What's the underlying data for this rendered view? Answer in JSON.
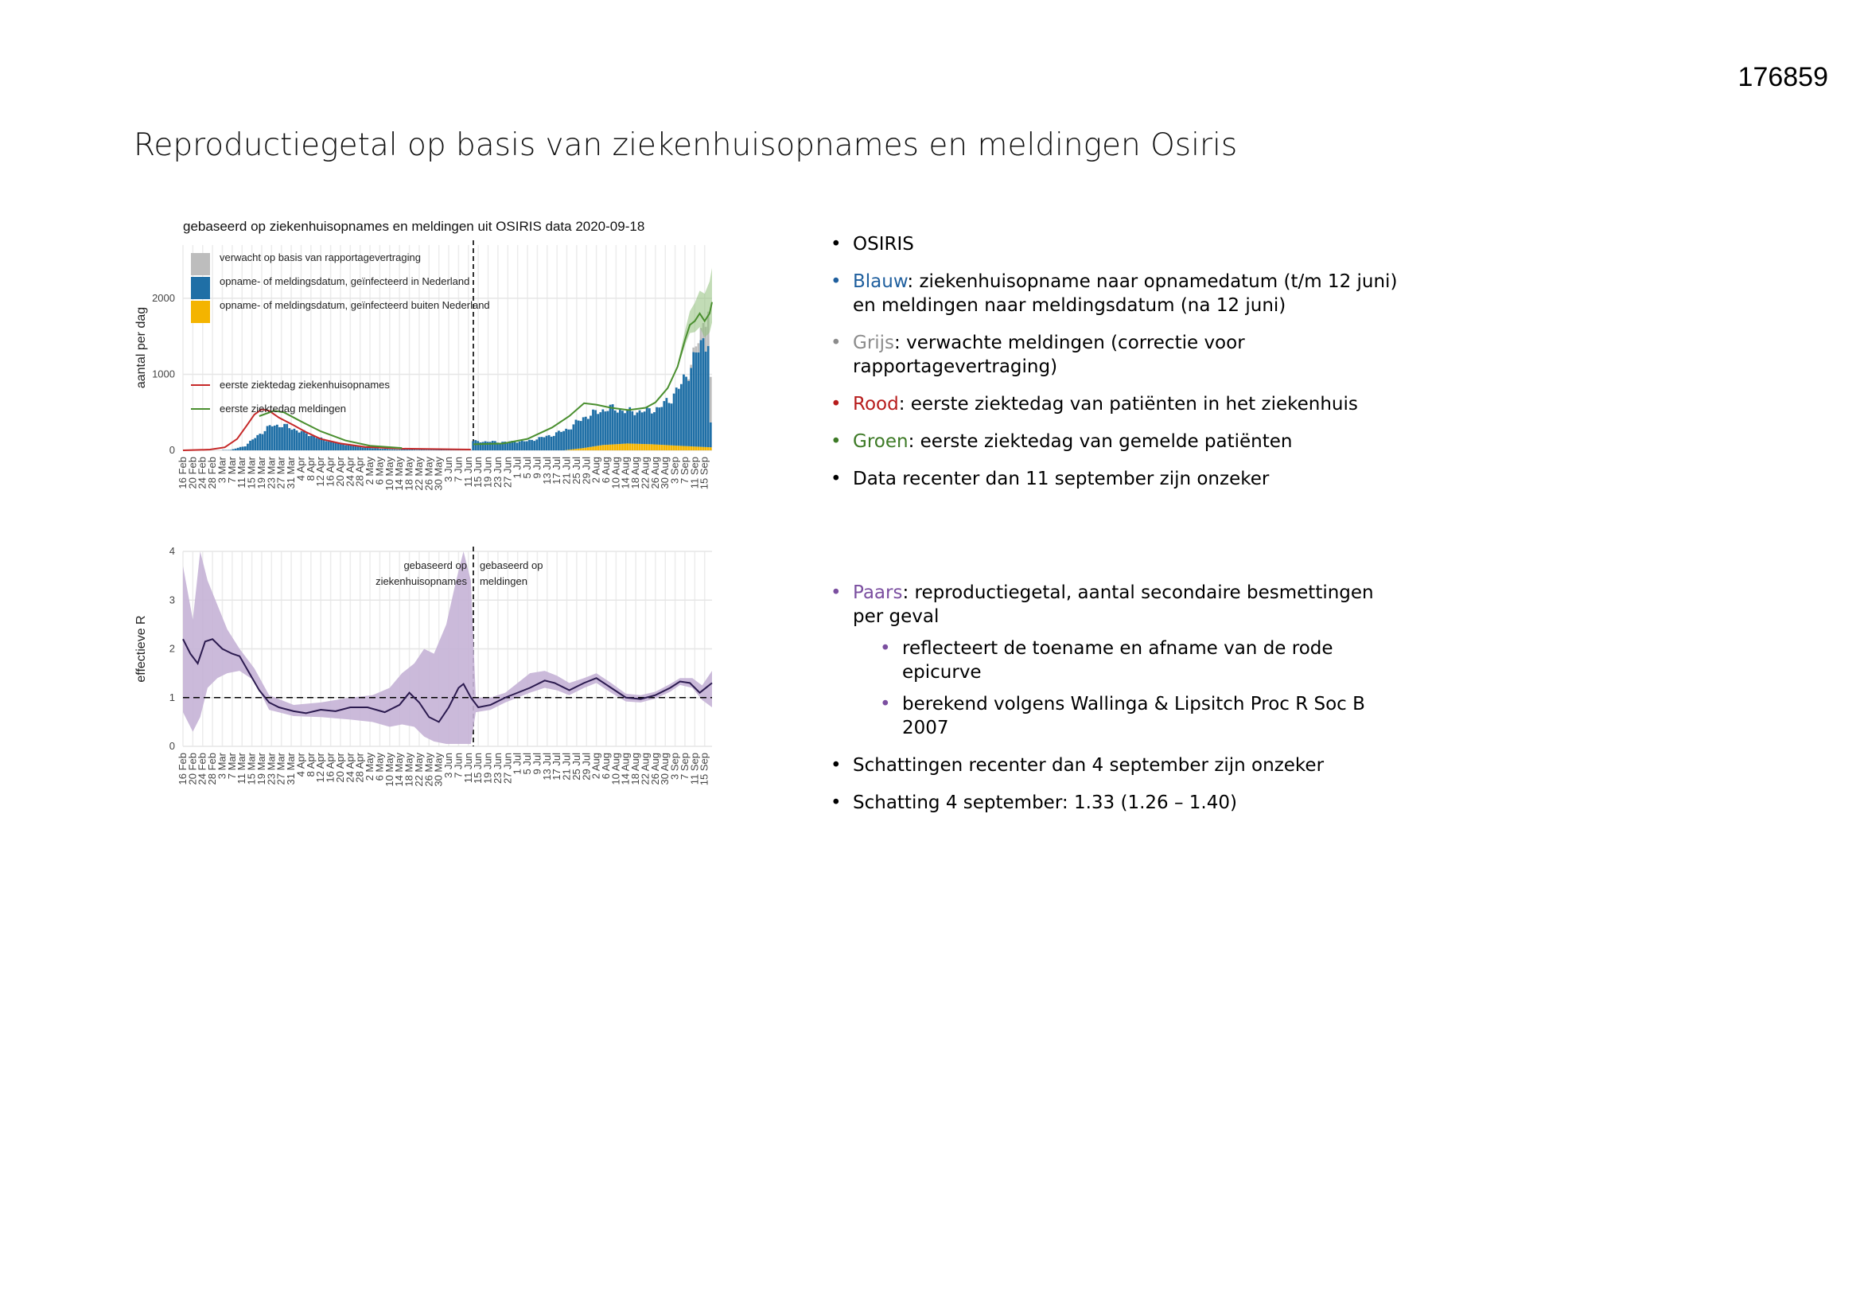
{
  "doc_id": "176859",
  "slide_title": "Reproductiegetal op basis van ziekenhuisopnames en meldingen Osiris",
  "colors": {
    "blue": "#1f6fa6",
    "grey": "#bdbdbd",
    "orange": "#f4b400",
    "red": "#c62828",
    "green": "#4a8f2f",
    "purple": "#6a4a9c",
    "purple_band": "#c5b3d6",
    "r_line": "#2b1a4f"
  },
  "bullets_top": [
    {
      "segments": [
        {
          "text": "OSIRIS",
          "color": "#000000"
        }
      ],
      "dot": "#000000"
    },
    {
      "segments": [
        {
          "text": "Blauw",
          "color": "#1f5f9e"
        },
        {
          "text": ": ziekenhuisopname naar opnamedatum (t/m 12 juni) en meldingen naar meldingsdatum (na 12 juni)",
          "color": "#000000"
        }
      ],
      "dot": "#1f5f9e"
    },
    {
      "segments": [
        {
          "text": "Grijs",
          "color": "#8c8c8c"
        },
        {
          "text": ": verwachte meldingen (correctie voor rapportagevertraging)",
          "color": "#000000"
        }
      ],
      "dot": "#8c8c8c"
    },
    {
      "segments": [
        {
          "text": "Rood",
          "color": "#b71c1c"
        },
        {
          "text": ": eerste ziektedag van patiënten in het ziekenhuis",
          "color": "#000000"
        }
      ],
      "dot": "#b71c1c"
    },
    {
      "segments": [
        {
          "text": "Groen",
          "color": "#3d7a26"
        },
        {
          "text": ": eerste ziektedag van gemelde patiënten",
          "color": "#000000"
        }
      ],
      "dot": "#3d7a26"
    },
    {
      "segments": [
        {
          "text": "Data recenter dan 11 september zijn onzeker",
          "color": "#000000"
        }
      ],
      "dot": "#000000"
    }
  ],
  "bullets_bottom": {
    "main": {
      "segments": [
        {
          "text": "Paars",
          "color": "#7b4fa0"
        },
        {
          "text": ": reproductiegetal, aantal secondaire  besmettingen per geval",
          "color": "#000000"
        }
      ],
      "dot": "#7b4fa0"
    },
    "sub": [
      "reflecteert de toename en afname van de rode epicurve",
      "berekend volgens Wallinga & Lipsitch Proc R Soc B 2007"
    ],
    "rest": [
      "Schattingen recenter dan 4 september zijn onzeker",
      "Schatting 4 september: 1.33 (1.26 – 1.40)"
    ]
  },
  "chart_data": [
    {
      "type": "bar",
      "title": "gebaseerd op ziekenhuisopnames en meldingen uit OSIRIS data 2020-09-18",
      "ylabel": "aantal per dag",
      "ylim": [
        0,
        2700
      ],
      "yticks": [
        0,
        1000,
        2000
      ],
      "x_range": [
        "2020-02-16",
        "2020-09-18"
      ],
      "xtick_labels": [
        "16 Feb",
        "20 Feb",
        "24 Feb",
        "28 Feb",
        "3 Mar",
        "7 Mar",
        "11 Mar",
        "15 Mar",
        "19 Mar",
        "23 Mar",
        "27 Mar",
        "31 Mar",
        "4 Apr",
        "8 Apr",
        "12 Apr",
        "16 Apr",
        "20 Apr",
        "24 Apr",
        "28 Apr",
        "2 May",
        "6 May",
        "10 May",
        "14 May",
        "18 May",
        "22 May",
        "26 May",
        "30 May",
        "3 Jun",
        "7 Jun",
        "11 Jun",
        "15 Jun",
        "19 Jun",
        "23 Jun",
        "27 Jun",
        "1 Jul",
        "5 Jul",
        "9 Jul",
        "13 Jul",
        "17 Jul",
        "21 Jul",
        "25 Jul",
        "29 Jul",
        "2 Aug",
        "6 Aug",
        "10 Aug",
        "14 Aug",
        "18 Aug",
        "22 Aug",
        "26 Aug",
        "30 Aug",
        "3 Sep",
        "7 Sep",
        "11 Sep",
        "15 Sep"
      ],
      "vline_date": "2020-06-13",
      "legend_position": "top-left",
      "legend": [
        {
          "label": "verwacht op basis van rapportagevertraging",
          "kind": "fill",
          "color": "#bdbdbd"
        },
        {
          "label": "opname- of meldingsdatum, geïnfecteerd in Nederland",
          "kind": "fill",
          "color": "#1f6fa6"
        },
        {
          "label": "opname- of meldingsdatum, geïnfecteerd buiten Nederland",
          "kind": "fill",
          "color": "#f4b400"
        },
        {
          "label": "eerste ziektedag ziekenhuisopnames",
          "kind": "line",
          "color": "#c62828"
        },
        {
          "label": "eerste ziektedag meldingen",
          "kind": "line",
          "color": "#4a8f2f"
        }
      ],
      "blue_knots": [
        [
          "2020-02-16",
          0
        ],
        [
          "2020-03-06",
          5
        ],
        [
          "2020-03-12",
          60
        ],
        [
          "2020-03-18",
          220
        ],
        [
          "2020-03-23",
          330
        ],
        [
          "2020-03-27",
          330
        ],
        [
          "2020-04-01",
          280
        ],
        [
          "2020-04-06",
          220
        ],
        [
          "2020-04-12",
          150
        ],
        [
          "2020-04-18",
          100
        ],
        [
          "2020-04-25",
          60
        ],
        [
          "2020-05-02",
          30
        ],
        [
          "2020-05-12",
          12
        ],
        [
          "2020-05-31",
          5
        ],
        [
          "2020-06-12",
          3
        ],
        [
          "2020-06-13",
          120
        ],
        [
          "2020-06-25",
          110
        ],
        [
          "2020-07-05",
          120
        ],
        [
          "2020-07-15",
          200
        ],
        [
          "2020-07-22",
          280
        ],
        [
          "2020-07-28",
          400
        ],
        [
          "2020-08-02",
          440
        ],
        [
          "2020-08-08",
          480
        ],
        [
          "2020-08-15",
          420
        ],
        [
          "2020-08-22",
          430
        ],
        [
          "2020-08-28",
          480
        ],
        [
          "2020-09-02",
          630
        ],
        [
          "2020-09-06",
          800
        ],
        [
          "2020-09-09",
          1000
        ],
        [
          "2020-09-12",
          1200
        ],
        [
          "2020-09-15",
          1400
        ],
        [
          "2020-09-17",
          1450
        ],
        [
          "2020-09-18",
          300
        ]
      ],
      "orange_knots": [
        [
          "2020-02-16",
          0
        ],
        [
          "2020-07-20",
          0
        ],
        [
          "2020-07-28",
          30
        ],
        [
          "2020-08-05",
          70
        ],
        [
          "2020-08-15",
          90
        ],
        [
          "2020-08-25",
          80
        ],
        [
          "2020-09-05",
          60
        ],
        [
          "2020-09-18",
          40
        ]
      ],
      "grey_knots": [
        [
          "2020-02-16",
          0
        ],
        [
          "2020-09-08",
          0
        ],
        [
          "2020-09-12",
          80
        ],
        [
          "2020-09-15",
          200
        ],
        [
          "2020-09-17",
          450
        ],
        [
          "2020-09-18",
          600
        ]
      ],
      "red_line": [
        [
          "2020-02-16",
          0
        ],
        [
          "2020-02-27",
          10
        ],
        [
          "2020-03-04",
          40
        ],
        [
          "2020-03-09",
          150
        ],
        [
          "2020-03-13",
          330
        ],
        [
          "2020-03-16",
          470
        ],
        [
          "2020-03-19",
          540
        ],
        [
          "2020-03-22",
          520
        ],
        [
          "2020-03-26",
          430
        ],
        [
          "2020-04-01",
          330
        ],
        [
          "2020-04-06",
          240
        ],
        [
          "2020-04-12",
          150
        ],
        [
          "2020-04-20",
          90
        ],
        [
          "2020-04-30",
          45
        ],
        [
          "2020-05-15",
          22
        ],
        [
          "2020-06-12",
          10
        ]
      ],
      "green_line": [
        [
          "2020-03-18",
          450
        ],
        [
          "2020-03-24",
          520
        ],
        [
          "2020-03-28",
          500
        ],
        [
          "2020-04-04",
          380
        ],
        [
          "2020-04-12",
          250
        ],
        [
          "2020-04-22",
          130
        ],
        [
          "2020-05-02",
          60
        ],
        [
          "2020-05-15",
          30
        ],
        [
          "2020-06-13",
          80
        ],
        [
          "2020-06-25",
          90
        ],
        [
          "2020-07-05",
          150
        ],
        [
          "2020-07-15",
          300
        ],
        [
          "2020-07-22",
          450
        ],
        [
          "2020-07-28",
          620
        ],
        [
          "2020-08-02",
          600
        ],
        [
          "2020-08-08",
          560
        ],
        [
          "2020-08-15",
          530
        ],
        [
          "2020-08-22",
          560
        ],
        [
          "2020-08-26",
          630
        ],
        [
          "2020-08-31",
          820
        ],
        [
          "2020-09-04",
          1100
        ],
        [
          "2020-09-07",
          1450
        ],
        [
          "2020-09-09",
          1650
        ],
        [
          "2020-09-11",
          1700
        ],
        [
          "2020-09-13",
          1800
        ],
        [
          "2020-09-15",
          1700
        ],
        [
          "2020-09-17",
          1800
        ],
        [
          "2020-09-18",
          1950
        ]
      ]
    },
    {
      "type": "line",
      "ylabel": "effectieve R",
      "ylim": [
        0,
        4
      ],
      "yticks": [
        0,
        1,
        2,
        3,
        4
      ],
      "x_range": [
        "2020-02-16",
        "2020-09-18"
      ],
      "xtick_labels": [
        "16 Feb",
        "20 Feb",
        "24 Feb",
        "28 Feb",
        "3 Mar",
        "7 Mar",
        "11 Mar",
        "15 Mar",
        "19 Mar",
        "23 Mar",
        "27 Mar",
        "31 Mar",
        "4 Apr",
        "8 Apr",
        "12 Apr",
        "16 Apr",
        "20 Apr",
        "24 Apr",
        "28 Apr",
        "2 May",
        "6 May",
        "10 May",
        "14 May",
        "18 May",
        "22 May",
        "26 May",
        "30 May",
        "3 Jun",
        "7 Jun",
        "11 Jun",
        "15 Jun",
        "19 Jun",
        "23 Jun",
        "27 Jun",
        "1 Jul",
        "5 Jul",
        "9 Jul",
        "13 Jul",
        "17 Jul",
        "21 Jul",
        "25 Jul",
        "29 Jul",
        "2 Aug",
        "6 Aug",
        "10 Aug",
        "14 Aug",
        "18 Aug",
        "22 Aug",
        "26 Aug",
        "30 Aug",
        "3 Sep",
        "7 Sep",
        "11 Sep",
        "15 Sep"
      ],
      "vline_date": "2020-06-13",
      "hline": 1,
      "annotation_left": [
        "gebaseerd op",
        "ziekenhuisopnames"
      ],
      "annotation_right": [
        "gebaseerd op",
        "meldingen"
      ],
      "r_line": [
        [
          "2020-02-16",
          2.2
        ],
        [
          "2020-02-19",
          1.9
        ],
        [
          "2020-02-22",
          1.7
        ],
        [
          "2020-02-25",
          2.15
        ],
        [
          "2020-02-28",
          2.2
        ],
        [
          "2020-03-03",
          2.0
        ],
        [
          "2020-03-07",
          1.9
        ],
        [
          "2020-03-10",
          1.85
        ],
        [
          "2020-03-14",
          1.5
        ],
        [
          "2020-03-18",
          1.15
        ],
        [
          "2020-03-22",
          0.9
        ],
        [
          "2020-03-26",
          0.8
        ],
        [
          "2020-04-01",
          0.72
        ],
        [
          "2020-04-06",
          0.68
        ],
        [
          "2020-04-12",
          0.75
        ],
        [
          "2020-04-18",
          0.72
        ],
        [
          "2020-04-24",
          0.8
        ],
        [
          "2020-05-01",
          0.8
        ],
        [
          "2020-05-08",
          0.7
        ],
        [
          "2020-05-14",
          0.85
        ],
        [
          "2020-05-18",
          1.1
        ],
        [
          "2020-05-22",
          0.9
        ],
        [
          "2020-05-26",
          0.6
        ],
        [
          "2020-05-30",
          0.5
        ],
        [
          "2020-06-03",
          0.8
        ],
        [
          "2020-06-07",
          1.2
        ],
        [
          "2020-06-09",
          1.28
        ],
        [
          "2020-06-12",
          1.0
        ],
        [
          "2020-06-15",
          0.8
        ],
        [
          "2020-06-20",
          0.85
        ],
        [
          "2020-06-26",
          1.0
        ],
        [
          "2020-07-01",
          1.1
        ],
        [
          "2020-07-06",
          1.2
        ],
        [
          "2020-07-12",
          1.35
        ],
        [
          "2020-07-16",
          1.3
        ],
        [
          "2020-07-22",
          1.15
        ],
        [
          "2020-07-28",
          1.3
        ],
        [
          "2020-08-02",
          1.4
        ],
        [
          "2020-08-08",
          1.2
        ],
        [
          "2020-08-14",
          1.0
        ],
        [
          "2020-08-20",
          0.97
        ],
        [
          "2020-08-26",
          1.05
        ],
        [
          "2020-09-01",
          1.2
        ],
        [
          "2020-09-05",
          1.33
        ],
        [
          "2020-09-09",
          1.3
        ],
        [
          "2020-09-13",
          1.1
        ],
        [
          "2020-09-18",
          1.3
        ]
      ],
      "band_upper": [
        [
          "2020-02-16",
          3.7
        ],
        [
          "2020-02-20",
          2.6
        ],
        [
          "2020-02-23",
          4.0
        ],
        [
          "2020-02-26",
          3.4
        ],
        [
          "2020-03-01",
          2.9
        ],
        [
          "2020-03-05",
          2.4
        ],
        [
          "2020-03-10",
          2.0
        ],
        [
          "2020-03-16",
          1.6
        ],
        [
          "2020-03-22",
          1.05
        ],
        [
          "2020-04-01",
          0.85
        ],
        [
          "2020-04-12",
          0.9
        ],
        [
          "2020-04-24",
          1.0
        ],
        [
          "2020-05-03",
          1.05
        ],
        [
          "2020-05-10",
          1.2
        ],
        [
          "2020-05-15",
          1.5
        ],
        [
          "2020-05-20",
          1.7
        ],
        [
          "2020-05-24",
          2.0
        ],
        [
          "2020-05-28",
          1.9
        ],
        [
          "2020-06-02",
          2.5
        ],
        [
          "2020-06-06",
          3.4
        ],
        [
          "2020-06-09",
          4.0
        ],
        [
          "2020-06-12",
          3.4
        ],
        [
          "2020-06-14",
          1.0
        ],
        [
          "2020-06-20",
          1.0
        ],
        [
          "2020-06-26",
          1.1
        ],
        [
          "2020-07-01",
          1.3
        ],
        [
          "2020-07-06",
          1.5
        ],
        [
          "2020-07-12",
          1.55
        ],
        [
          "2020-07-17",
          1.45
        ],
        [
          "2020-07-22",
          1.3
        ],
        [
          "2020-07-28",
          1.4
        ],
        [
          "2020-08-02",
          1.5
        ],
        [
          "2020-08-08",
          1.3
        ],
        [
          "2020-08-14",
          1.08
        ],
        [
          "2020-08-20",
          1.05
        ],
        [
          "2020-08-26",
          1.12
        ],
        [
          "2020-09-01",
          1.28
        ],
        [
          "2020-09-05",
          1.4
        ],
        [
          "2020-09-10",
          1.4
        ],
        [
          "2020-09-14",
          1.25
        ],
        [
          "2020-09-18",
          1.55
        ]
      ],
      "band_lower": [
        [
          "2020-02-16",
          0.7
        ],
        [
          "2020-02-20",
          0.3
        ],
        [
          "2020-02-23",
          0.6
        ],
        [
          "2020-02-26",
          1.2
        ],
        [
          "2020-03-01",
          1.4
        ],
        [
          "2020-03-05",
          1.5
        ],
        [
          "2020-03-10",
          1.55
        ],
        [
          "2020-03-16",
          1.35
        ],
        [
          "2020-03-22",
          0.75
        ],
        [
          "2020-04-01",
          0.62
        ],
        [
          "2020-04-12",
          0.6
        ],
        [
          "2020-04-24",
          0.55
        ],
        [
          "2020-05-03",
          0.5
        ],
        [
          "2020-05-10",
          0.4
        ],
        [
          "2020-05-15",
          0.45
        ],
        [
          "2020-05-20",
          0.4
        ],
        [
          "2020-05-24",
          0.2
        ],
        [
          "2020-05-28",
          0.1
        ],
        [
          "2020-06-02",
          0.05
        ],
        [
          "2020-06-06",
          0.05
        ],
        [
          "2020-06-09",
          0.05
        ],
        [
          "2020-06-12",
          0.05
        ],
        [
          "2020-06-14",
          0.7
        ],
        [
          "2020-06-20",
          0.75
        ],
        [
          "2020-06-26",
          0.9
        ],
        [
          "2020-07-01",
          1.0
        ],
        [
          "2020-07-06",
          1.1
        ],
        [
          "2020-07-12",
          1.2
        ],
        [
          "2020-07-17",
          1.15
        ],
        [
          "2020-07-22",
          1.05
        ],
        [
          "2020-07-28",
          1.2
        ],
        [
          "2020-08-02",
          1.3
        ],
        [
          "2020-08-08",
          1.1
        ],
        [
          "2020-08-14",
          0.92
        ],
        [
          "2020-08-20",
          0.9
        ],
        [
          "2020-08-26",
          0.98
        ],
        [
          "2020-09-01",
          1.12
        ],
        [
          "2020-09-05",
          1.26
        ],
        [
          "2020-09-10",
          1.2
        ],
        [
          "2020-09-14",
          0.95
        ],
        [
          "2020-09-18",
          0.8
        ]
      ]
    }
  ]
}
